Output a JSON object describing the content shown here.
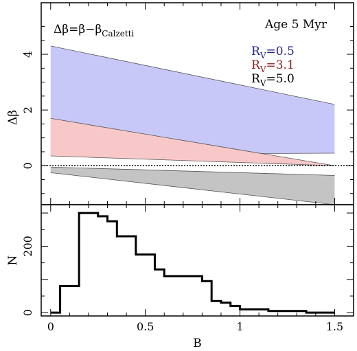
{
  "chart_data": [
    {
      "type": "area",
      "ylabel": "Δβ",
      "xlim": [
        -0.05,
        1.6
      ],
      "ylim": [
        -1.4,
        5.85
      ],
      "yticks": [
        0,
        2,
        4
      ],
      "title_formula": {
        "lhs": "Δβ",
        "rhs_beta": "β",
        "minus_beta": "β",
        "subscript": "Calzetti"
      },
      "annotation": "Age 5 Myr",
      "zero_line": 0,
      "legend_position": "top-right",
      "series": [
        {
          "label_main": "R",
          "label_sub": "V",
          "value_text": "=0.5",
          "color": "#23238e",
          "fill": "#c8c8f8",
          "x": [
            0,
            1.5
          ],
          "upper": [
            4.3,
            2.2
          ],
          "lower": [
            0.4,
            0.45
          ]
        },
        {
          "label_main": "R",
          "label_sub": "V",
          "value_text": "=3.1",
          "color": "#8b1a1a",
          "fill": "#f8c8c8",
          "x": [
            0,
            1.5
          ],
          "upper": [
            1.7,
            0.0
          ],
          "lower": [
            0.35,
            0.0
          ]
        },
        {
          "label_main": "R",
          "label_sub": "V",
          "value_text": "=5.0",
          "color": "#000000",
          "fill": "#c4c4c4",
          "x": [
            0,
            1.5
          ],
          "upper": [
            -0.05,
            -0.35
          ],
          "lower": [
            -0.25,
            -1.4
          ]
        }
      ]
    },
    {
      "type": "histogram",
      "xlabel": "B",
      "ylabel": "N",
      "xlim": [
        -0.05,
        1.6
      ],
      "ylim": [
        -10,
        325
      ],
      "xticks": [
        0,
        0.5,
        1,
        1.5
      ],
      "yticks": [
        0,
        200
      ],
      "bins": [
        0,
        0.05,
        0.15,
        0.2,
        0.25,
        0.3,
        0.35,
        0.45,
        0.5,
        0.55,
        0.6,
        0.65,
        0.7,
        0.75,
        0.8,
        0.85,
        0.9,
        0.95,
        1.0,
        1.05,
        1.1,
        1.15,
        1.2,
        1.3,
        1.35,
        1.4,
        1.45,
        1.5
      ],
      "counts": [
        0,
        80,
        300,
        300,
        290,
        275,
        230,
        175,
        175,
        130,
        110,
        110,
        110,
        110,
        95,
        35,
        30,
        20,
        10,
        10,
        10,
        5,
        5,
        5,
        0,
        0,
        0
      ]
    }
  ]
}
